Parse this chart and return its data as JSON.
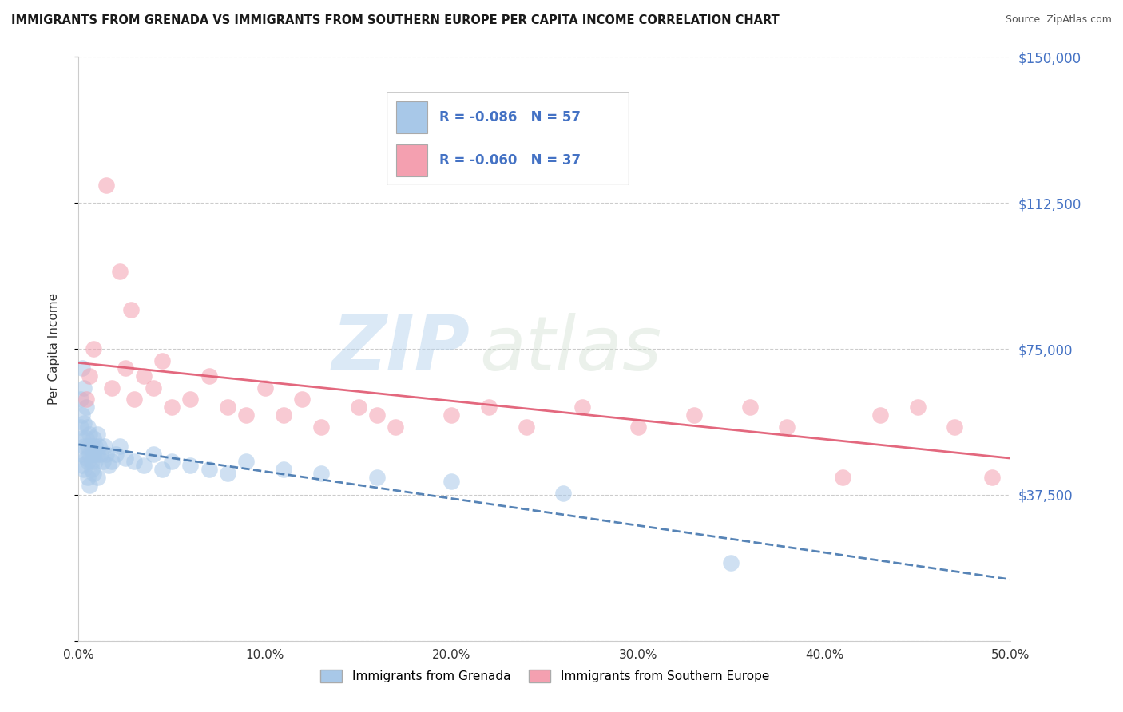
{
  "title": "IMMIGRANTS FROM GRENADA VS IMMIGRANTS FROM SOUTHERN EUROPE PER CAPITA INCOME CORRELATION CHART",
  "source": "Source: ZipAtlas.com",
  "ylabel": "Per Capita Income",
  "xlim": [
    0,
    0.5
  ],
  "ylim": [
    0,
    150000
  ],
  "ytick_vals": [
    0,
    37500,
    75000,
    112500,
    150000
  ],
  "ytick_labels": [
    "",
    "$37,500",
    "$75,000",
    "$112,500",
    "$150,000"
  ],
  "xtick_vals": [
    0.0,
    0.1,
    0.2,
    0.3,
    0.4,
    0.5
  ],
  "xtick_labels": [
    "0.0%",
    "10.0%",
    "20.0%",
    "30.0%",
    "40.0%",
    "50.0%"
  ],
  "legend_R1": "-0.086",
  "legend_N1": "57",
  "legend_R2": "-0.060",
  "legend_N2": "37",
  "color_blue": "#a8c8e8",
  "color_pink": "#f4a0b0",
  "line_blue": "#3a6faa",
  "line_pink": "#e05870",
  "watermark_zip": "ZIP",
  "watermark_atlas": "atlas",
  "label1": "Immigrants from Grenada",
  "label2": "Immigrants from Southern Europe",
  "grenada_x": [
    0.001,
    0.001,
    0.001,
    0.002,
    0.002,
    0.002,
    0.002,
    0.003,
    0.003,
    0.003,
    0.003,
    0.004,
    0.004,
    0.004,
    0.005,
    0.005,
    0.005,
    0.005,
    0.006,
    0.006,
    0.006,
    0.007,
    0.007,
    0.007,
    0.008,
    0.008,
    0.008,
    0.009,
    0.009,
    0.01,
    0.01,
    0.01,
    0.011,
    0.012,
    0.013,
    0.014,
    0.015,
    0.016,
    0.018,
    0.02,
    0.022,
    0.025,
    0.03,
    0.035,
    0.04,
    0.045,
    0.05,
    0.06,
    0.07,
    0.08,
    0.09,
    0.11,
    0.13,
    0.16,
    0.2,
    0.26,
    0.35
  ],
  "grenada_y": [
    55000,
    62000,
    48000,
    52000,
    58000,
    45000,
    70000,
    56000,
    50000,
    44000,
    65000,
    52000,
    47000,
    60000,
    50000,
    46000,
    55000,
    42000,
    48000,
    53000,
    40000,
    50000,
    46000,
    44000,
    52000,
    48000,
    43000,
    50000,
    46000,
    53000,
    48000,
    42000,
    50000,
    48000,
    46000,
    50000,
    48000,
    45000,
    46000,
    48000,
    50000,
    47000,
    46000,
    45000,
    48000,
    44000,
    46000,
    45000,
    44000,
    43000,
    46000,
    44000,
    43000,
    42000,
    41000,
    38000,
    20000
  ],
  "southern_x": [
    0.004,
    0.006,
    0.008,
    0.015,
    0.018,
    0.022,
    0.025,
    0.028,
    0.03,
    0.035,
    0.04,
    0.045,
    0.05,
    0.06,
    0.07,
    0.08,
    0.09,
    0.1,
    0.11,
    0.12,
    0.13,
    0.15,
    0.16,
    0.17,
    0.2,
    0.22,
    0.24,
    0.27,
    0.3,
    0.33,
    0.36,
    0.38,
    0.41,
    0.43,
    0.45,
    0.47,
    0.49
  ],
  "southern_y": [
    62000,
    68000,
    75000,
    117000,
    65000,
    95000,
    70000,
    85000,
    62000,
    68000,
    65000,
    72000,
    60000,
    62000,
    68000,
    60000,
    58000,
    65000,
    58000,
    62000,
    55000,
    60000,
    58000,
    55000,
    58000,
    60000,
    55000,
    60000,
    55000,
    58000,
    60000,
    55000,
    42000,
    58000,
    60000,
    55000,
    42000
  ]
}
